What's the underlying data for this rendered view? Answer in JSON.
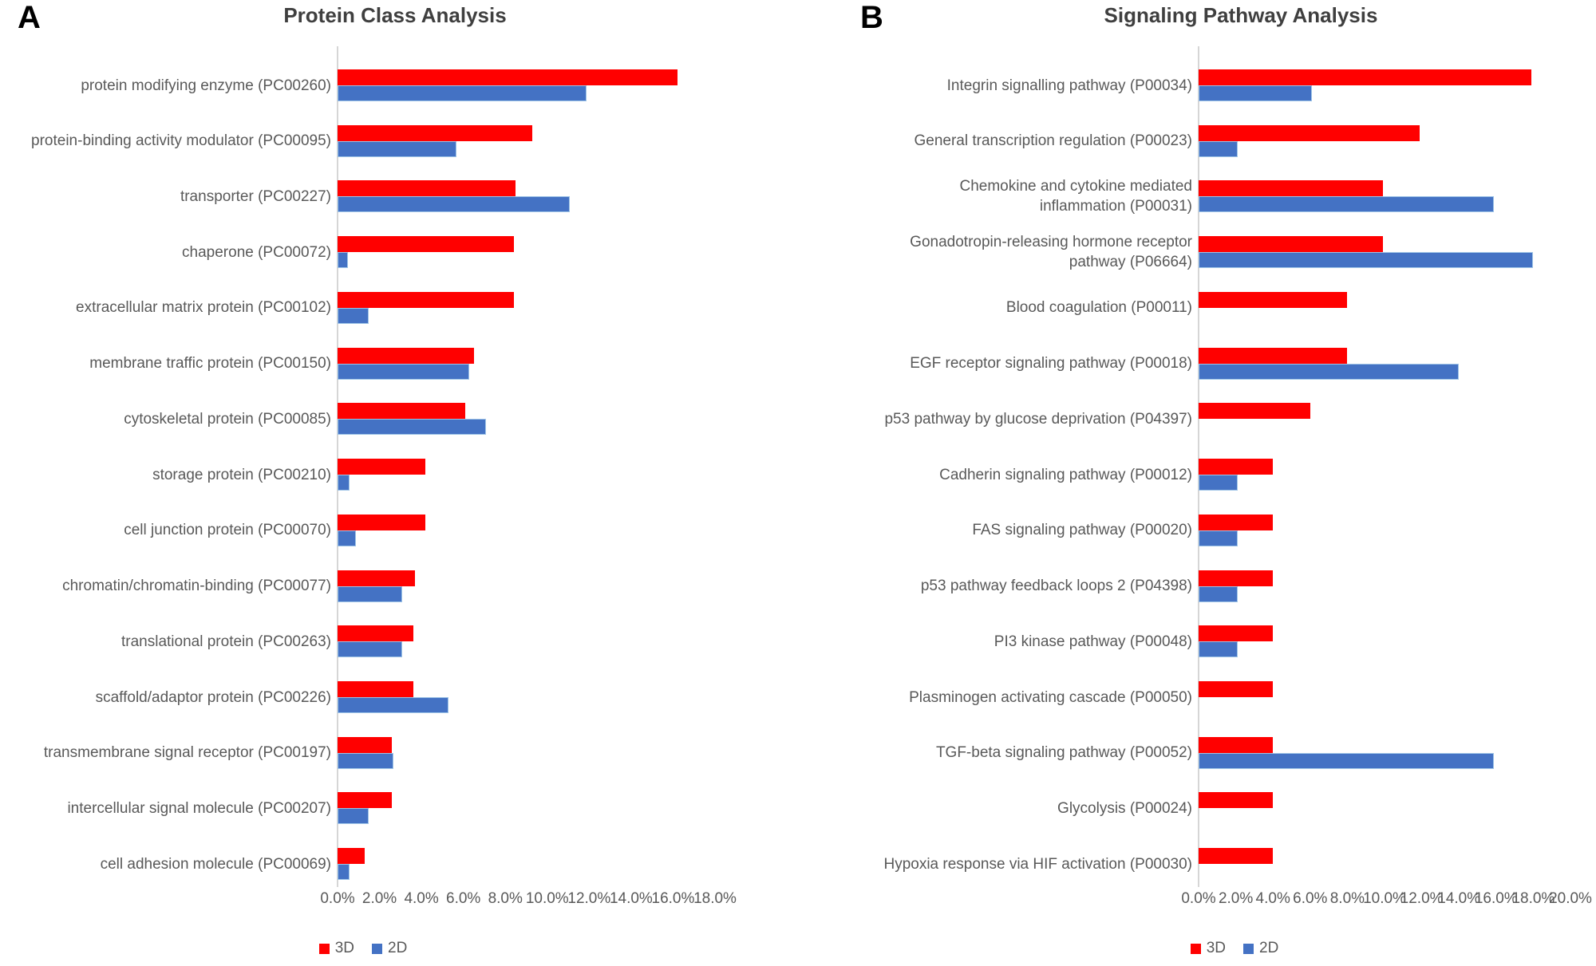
{
  "figure": {
    "background": "#ffffff",
    "colors": {
      "series_3d": "#ff0000",
      "series_2d": "#4472c4",
      "axis_line": "#d6d6d6",
      "label_text": "#595959",
      "title_text": "#3f3f3f"
    }
  },
  "chart_data": [
    {
      "type": "bar",
      "orientation": "horizontal",
      "panel_letter": "A",
      "title": "Protein Class Analysis",
      "legend_position": "bottom",
      "grid": false,
      "xlim": [
        0,
        18
      ],
      "x_tick_step": 2,
      "x_tick_labels": [
        "0.0%",
        "2.0%",
        "4.0%",
        "6.0%",
        "8.0%",
        "10.0%",
        "12.0%",
        "14.0%",
        "16.0%",
        "18.0%"
      ],
      "categories": [
        "protein modifying enzyme (PC00260)",
        "protein-binding activity modulator (PC00095)",
        "transporter (PC00227)",
        "chaperone (PC00072)",
        "extracellular matrix protein (PC00102)",
        "membrane traffic protein (PC00150)",
        "cytoskeletal protein (PC00085)",
        "storage protein (PC00210)",
        "cell junction protein (PC00070)",
        "chromatin/chromatin-binding (PC00077)",
        "translational protein (PC00263)",
        "scaffold/adaptor protein (PC00226)",
        "transmembrane signal receptor (PC00197)",
        "intercellular signal molecule (PC00207)",
        "cell adhesion molecule (PC00069)"
      ],
      "series": [
        {
          "name": "3D",
          "color": "#ff0000",
          "values": [
            16.2,
            9.3,
            8.5,
            8.4,
            8.4,
            6.5,
            6.1,
            4.2,
            4.2,
            3.7,
            3.6,
            3.6,
            2.6,
            2.6,
            1.3
          ]
        },
        {
          "name": "2D",
          "color": "#4472c4",
          "values": [
            11.8,
            5.6,
            11.0,
            0.4,
            1.4,
            6.2,
            7.0,
            0.5,
            0.8,
            3.0,
            3.0,
            5.2,
            2.6,
            1.4,
            0.5
          ]
        }
      ]
    },
    {
      "type": "bar",
      "orientation": "horizontal",
      "panel_letter": "B",
      "title": "Signaling Pathway Analysis",
      "legend_position": "bottom",
      "grid": false,
      "xlim": [
        0,
        20
      ],
      "x_tick_step": 2,
      "x_tick_labels": [
        "0.0%",
        "2.0%",
        "4.0%",
        "6.0%",
        "8.0%",
        "10.0%",
        "12.0%",
        "14.0%",
        "16.0%",
        "18.0%",
        "20.0%"
      ],
      "categories": [
        "Integrin signalling pathway (P00034)",
        "General transcription regulation (P00023)",
        "Chemokine and cytokine mediated inflammation (P00031)",
        "Gonadotropin-releasing hormone receptor pathway (P06664)",
        "Blood coagulation (P00011)",
        "EGF receptor signaling pathway (P00018)",
        "p53 pathway by glucose deprivation (P04397)",
        "Cadherin signaling pathway (P00012)",
        "FAS signaling pathway (P00020)",
        "p53 pathway feedback loops 2 (P04398)",
        "PI3 kinase pathway (P00048)",
        "Plasminogen activating cascade (P00050)",
        "TGF-beta signaling pathway (P00052)",
        "Glycolysis (P00024)",
        "Hypoxia response via HIF activation (P00030)"
      ],
      "series": [
        {
          "name": "3D",
          "color": "#ff0000",
          "values": [
            17.9,
            11.9,
            9.9,
            9.9,
            8.0,
            8.0,
            6.0,
            4.0,
            4.0,
            4.0,
            4.0,
            4.0,
            4.0,
            4.0,
            4.0
          ]
        },
        {
          "name": "2D",
          "color": "#4472c4",
          "values": [
            6.0,
            2.0,
            15.8,
            17.9,
            0,
            13.9,
            0,
            2.0,
            2.0,
            2.0,
            2.0,
            0,
            15.8,
            0,
            0
          ]
        }
      ]
    }
  ]
}
